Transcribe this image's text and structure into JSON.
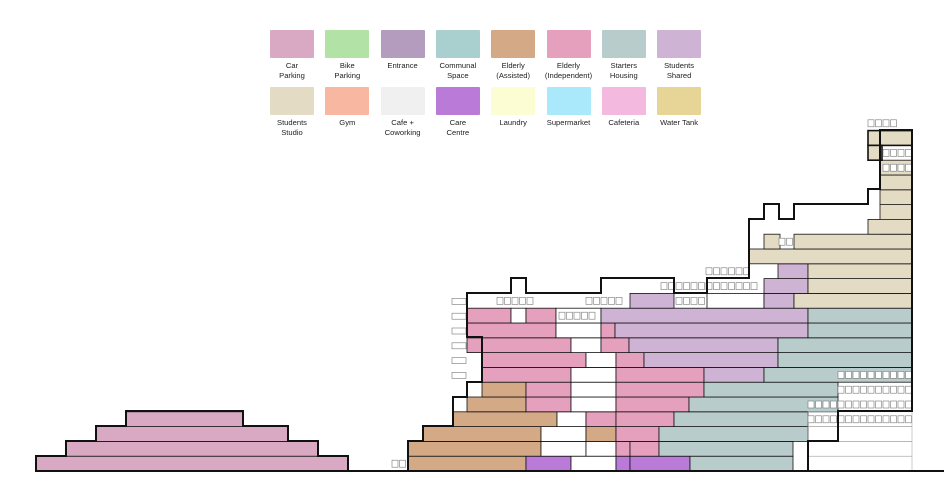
{
  "legend": [
    {
      "key": "car_parking",
      "label": "Car\nParking",
      "color": "#d9a9c3"
    },
    {
      "key": "bike_parking",
      "label": "Bike\nParking",
      "color": "#b3e2a6"
    },
    {
      "key": "entrance",
      "label": "Entrance",
      "color": "#b39cbd"
    },
    {
      "key": "communal_space",
      "label": "Communal\nSpace",
      "color": "#a9d0cf"
    },
    {
      "key": "elderly_assisted",
      "label": "Elderly\n(Assisted)",
      "color": "#d4a985"
    },
    {
      "key": "elderly_independent",
      "label": "Elderly\n(Independent)",
      "color": "#e4a0bc"
    },
    {
      "key": "starters_housing",
      "label": "Starters\nHousing",
      "color": "#b9cccc"
    },
    {
      "key": "students_shared",
      "label": "Students\nShared",
      "color": "#cfb3d5"
    },
    {
      "key": "students_studio",
      "label": "Students\nStudio",
      "color": "#e3dbc3"
    },
    {
      "key": "gym",
      "label": "Gym",
      "color": "#f7b7a0"
    },
    {
      "key": "cafe_coworking",
      "label": "Cafe +\nCoworking",
      "color": "#f0f0f0"
    },
    {
      "key": "care_centre",
      "label": "Care\nCentre",
      "color": "#b97ad8"
    },
    {
      "key": "laundry",
      "label": "Laundry",
      "color": "#fdfdd3"
    },
    {
      "key": "supermarket",
      "label": "Supermarket",
      "color": "#a9e9fb"
    },
    {
      "key": "cafeteria",
      "label": "Cafeteria",
      "color": "#f3b9df"
    },
    {
      "key": "water_tank",
      "label": "Water Tank",
      "color": "#e7d497"
    }
  ],
  "colors": {
    "outline": "#111111",
    "ground": "#111111",
    "balcony": "#777777",
    "void": "#ffffff"
  }
}
